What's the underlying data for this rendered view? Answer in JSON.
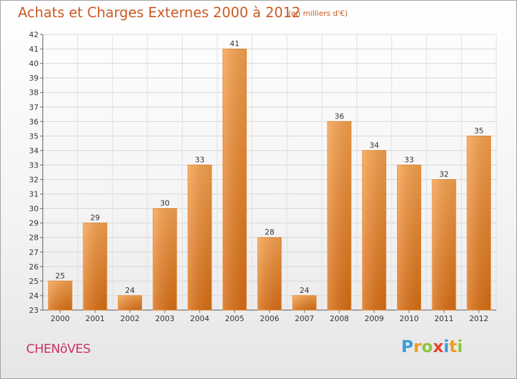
{
  "chart_data": {
    "type": "bar",
    "title": "Achats et Charges Externes 2000 à 2012",
    "subtitle": "(en milliers d'€)",
    "categories": [
      "2000",
      "2001",
      "2002",
      "2003",
      "2004",
      "2005",
      "2006",
      "2007",
      "2008",
      "2009",
      "2010",
      "2011",
      "2012"
    ],
    "values": [
      25,
      29,
      24,
      30,
      33,
      41,
      28,
      24,
      36,
      34,
      33,
      32,
      35
    ],
    "ylim": [
      23,
      42
    ],
    "yticks": [
      23,
      24,
      25,
      26,
      27,
      28,
      29,
      30,
      31,
      32,
      33,
      34,
      35,
      36,
      37,
      38,
      39,
      40,
      41,
      42
    ],
    "grid": true,
    "bar_color": "#f28a2e"
  },
  "place_name": "CHENôVES",
  "logo": {
    "letters": [
      "P",
      "r",
      "o",
      "x",
      "i",
      "t",
      "i"
    ],
    "colors": [
      "#3a9bd9",
      "#f39a1e",
      "#8cc63f",
      "#e8412c",
      "#3a9bd9",
      "#f39a1e",
      "#8cc63f"
    ]
  }
}
